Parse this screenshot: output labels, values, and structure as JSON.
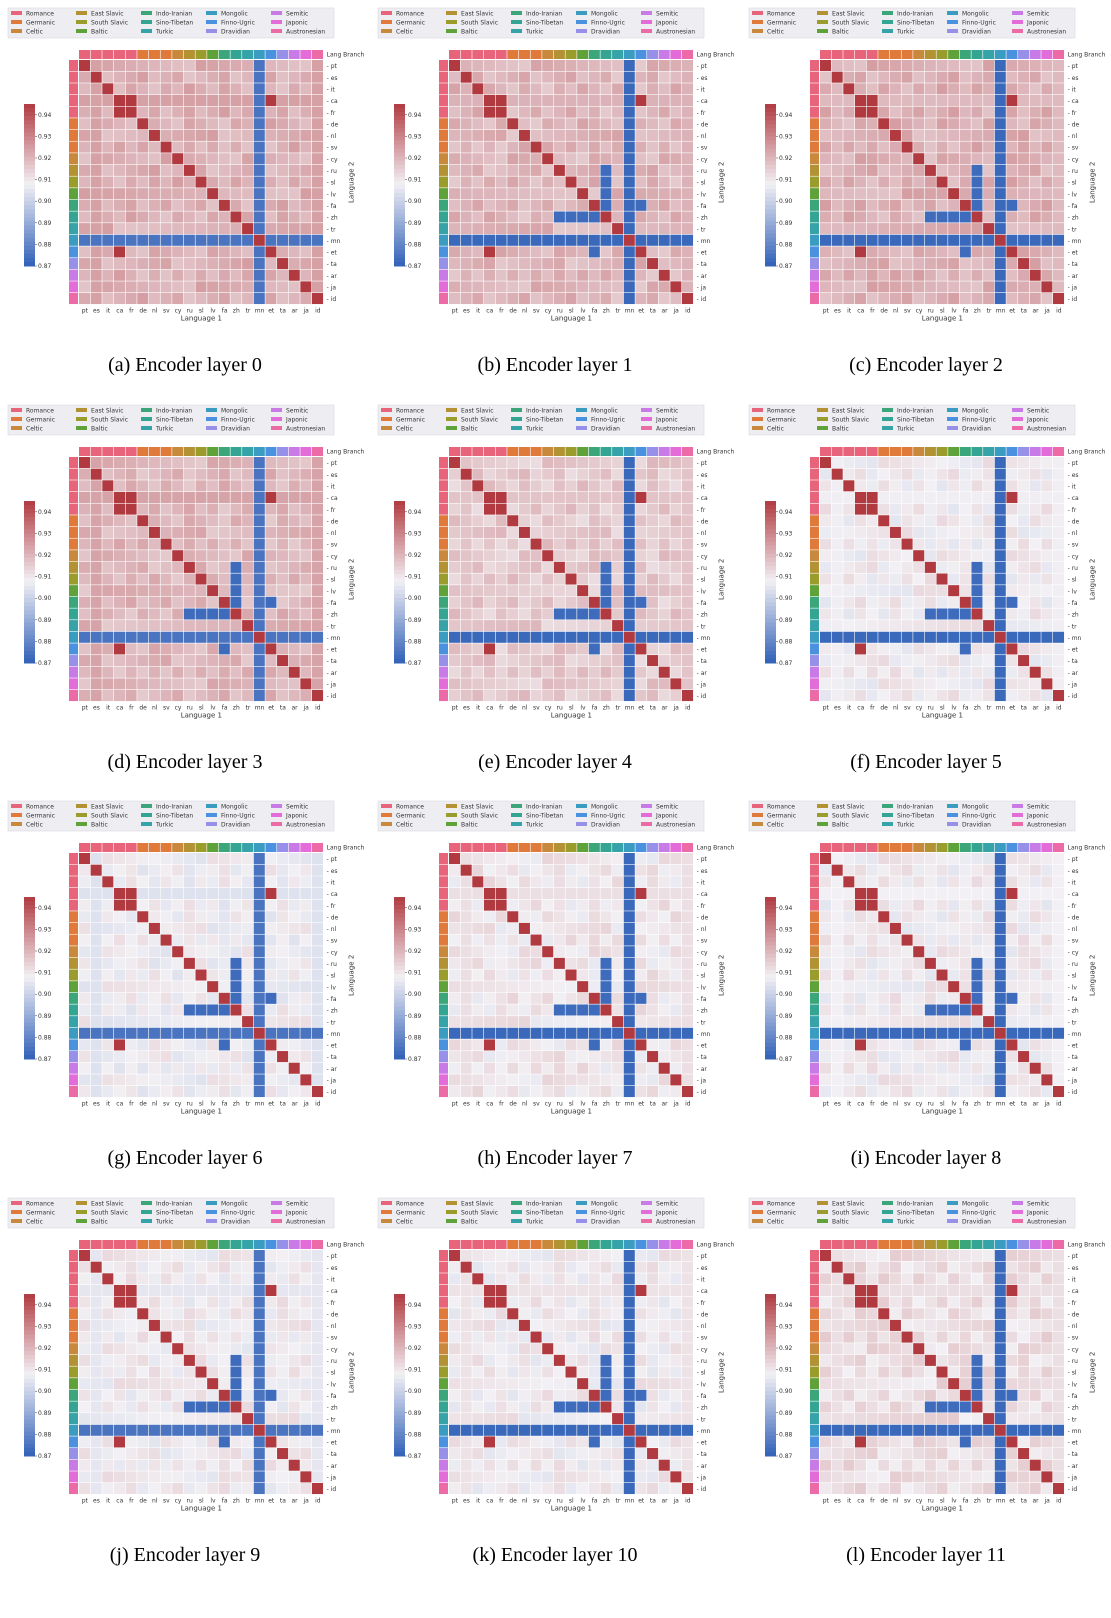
{
  "figure": {
    "captions": [
      "(a)  Encoder layer 0",
      "(b)  Encoder layer 1",
      "(c)  Encoder layer 2",
      "(d)  Encoder layer 3",
      "(e)  Encoder layer 4",
      "(f)  Encoder layer 5",
      "(g)  Encoder layer 6",
      "(h)  Encoder layer 7",
      "(i)  Encoder layer 8",
      "(j)  Encoder layer 9",
      "(k)  Encoder layer 10",
      "(l)  Encoder layer 11"
    ]
  },
  "chart_data": {
    "type": "heatmap",
    "xlabel": "Language 1",
    "ylabel": "Language 2",
    "branch_label": "Lang Branch",
    "languages": [
      "pt",
      "es",
      "it",
      "ca",
      "fr",
      "de",
      "nl",
      "sv",
      "cy",
      "ru",
      "sl",
      "lv",
      "fa",
      "zh",
      "tr",
      "mn",
      "et",
      "ta",
      "ar",
      "ja",
      "id"
    ],
    "language_branches": [
      "Romance",
      "Romance",
      "Romance",
      "Romance",
      "Romance",
      "Germanic",
      "Germanic",
      "Germanic",
      "Celtic",
      "East Slavic",
      "South Slavic",
      "Baltic",
      "Indo-Iranian",
      "Sino-Tibetan",
      "Turkic",
      "Mongolic",
      "Finno-Ugric",
      "Dravidian",
      "Semitic",
      "Japonic",
      "Austronesian"
    ],
    "legend": [
      {
        "name": "Romance",
        "color": "#e8647a"
      },
      {
        "name": "Germanic",
        "color": "#e07a3a"
      },
      {
        "name": "Celtic",
        "color": "#c9893c"
      },
      {
        "name": "East Slavic",
        "color": "#b39234"
      },
      {
        "name": "South Slavic",
        "color": "#9a9c2c"
      },
      {
        "name": "Baltic",
        "color": "#5fa23a"
      },
      {
        "name": "Indo-Iranian",
        "color": "#3aa67a"
      },
      {
        "name": "Sino-Tibetan",
        "color": "#33a592"
      },
      {
        "name": "Turkic",
        "color": "#36a3a8"
      },
      {
        "name": "Mongolic",
        "color": "#3a9cc0"
      },
      {
        "name": "Finno-Ugric",
        "color": "#4a92e0"
      },
      {
        "name": "Dravidian",
        "color": "#9690e8"
      },
      {
        "name": "Semitic",
        "color": "#c87ae6"
      },
      {
        "name": "Japonic",
        "color": "#e36cd8"
      },
      {
        "name": "Austronesian",
        "color": "#ec6aa6"
      }
    ],
    "colorbar": {
      "vmin": 0.87,
      "vmax": 0.945,
      "ticks": [
        "0.87",
        "0.88",
        "0.89",
        "0.90",
        "0.91",
        "0.92",
        "0.93",
        "0.94"
      ],
      "colors": {
        "low": "#3060b8",
        "mid": "#f2f0f4",
        "high": "#b03a40"
      }
    },
    "layers_base": [
      0.921,
      0.92,
      0.921,
      0.92,
      0.916,
      0.909,
      0.908,
      0.91,
      0.909,
      0.909,
      0.909,
      0.912
    ],
    "special_pairs_similarity": 0.945,
    "special_pairs": [
      [
        "ca",
        "fr"
      ],
      [
        "ca",
        "et"
      ]
    ],
    "low_similarity_cells": [
      [
        "sl",
        "zh"
      ],
      [
        "lv",
        "zh"
      ],
      [
        "ru",
        "zh"
      ],
      [
        "fa",
        "zh"
      ],
      [
        "fa",
        "et"
      ]
    ],
    "outlier_language": "mn",
    "outlier_similarity": 0.872
  }
}
